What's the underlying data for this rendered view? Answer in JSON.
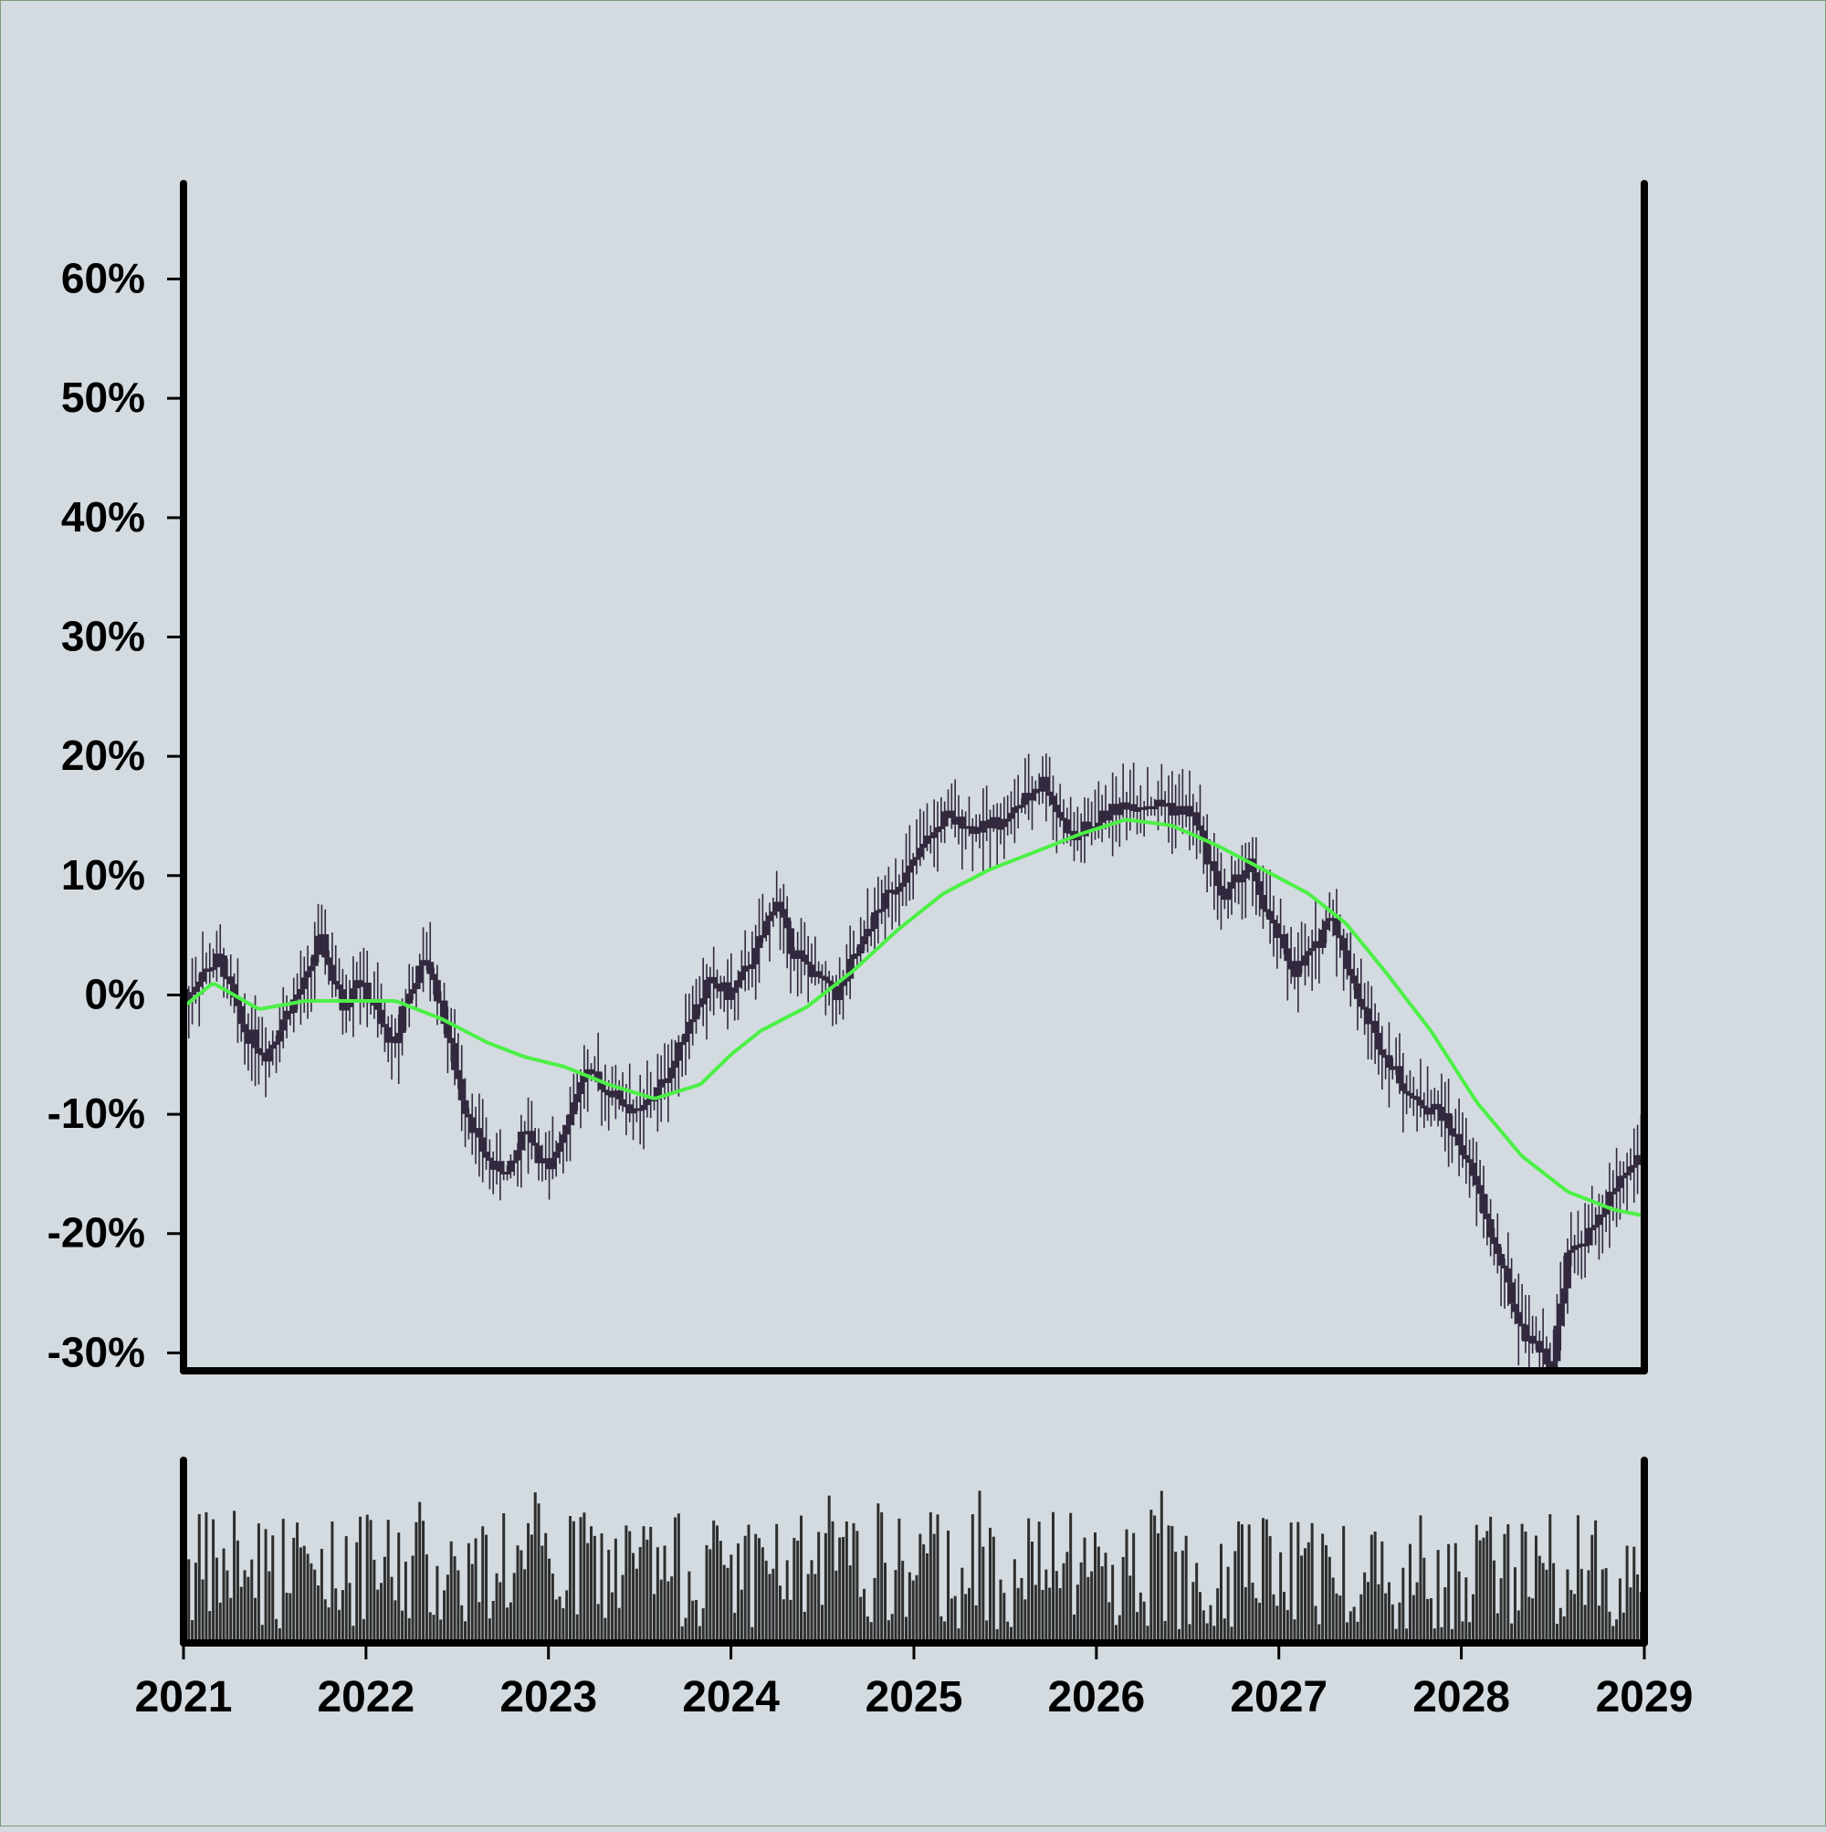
{
  "chart_data": {
    "type": "candlestick",
    "xlim": [
      "2021-01-01",
      "2029-01-01"
    ],
    "x_tick_labels": [
      "2021",
      "2022",
      "2023",
      "2024",
      "2025",
      "2026",
      "2027",
      "2028",
      "2029"
    ],
    "ylim": [
      -31.5,
      68
    ],
    "y_tick_values": [
      60,
      50,
      40,
      30,
      20,
      10,
      0,
      -10,
      -20,
      -30
    ],
    "y_tick_labels": [
      "60%",
      "50%",
      "40%",
      "30%",
      "20%",
      "10%",
      "0%",
      "-10%",
      "-20%",
      "-30%"
    ],
    "grid": false,
    "legend": "none",
    "colors": {
      "background": "#d3dbe0",
      "candle": "#33293f",
      "moving_average": "#4cf046",
      "volume": "#2e2e2e",
      "axis": "#000000"
    },
    "price_path": [
      [
        "2021-01-01",
        -1
      ],
      [
        "2021-02-01",
        1.5
      ],
      [
        "2021-03-15",
        3
      ],
      [
        "2021-05-01",
        -3
      ],
      [
        "2021-06-15",
        -5
      ],
      [
        "2021-08-01",
        -1
      ],
      [
        "2021-09-01",
        1
      ],
      [
        "2021-10-01",
        5
      ],
      [
        "2021-11-15",
        -1
      ],
      [
        "2021-12-15",
        1.5
      ],
      [
        "2022-01-15",
        -1
      ],
      [
        "2022-03-01",
        -4.5
      ],
      [
        "2022-03-15",
        -1
      ],
      [
        "2022-05-01",
        3
      ],
      [
        "2022-06-01",
        -1
      ],
      [
        "2022-07-15",
        -9
      ],
      [
        "2022-09-01",
        -14
      ],
      [
        "2022-10-15",
        -15
      ],
      [
        "2022-11-15",
        -11
      ],
      [
        "2023-01-01",
        -15
      ],
      [
        "2023-02-15",
        -9.5
      ],
      [
        "2023-03-15",
        -6.5
      ],
      [
        "2023-05-01",
        -8
      ],
      [
        "2023-07-01",
        -10
      ],
      [
        "2023-09-01",
        -6.5
      ],
      [
        "2023-10-01",
        -3
      ],
      [
        "2023-11-15",
        1
      ],
      [
        "2024-01-01",
        0
      ],
      [
        "2024-02-15",
        3
      ],
      [
        "2024-04-01",
        8
      ],
      [
        "2024-05-01",
        4
      ],
      [
        "2024-07-01",
        1
      ],
      [
        "2024-08-01",
        0
      ],
      [
        "2024-09-15",
        4
      ],
      [
        "2024-11-01",
        8
      ],
      [
        "2025-01-01",
        11
      ],
      [
        "2025-03-01",
        15
      ],
      [
        "2025-05-01",
        14
      ],
      [
        "2025-07-01",
        14.5
      ],
      [
        "2025-09-15",
        18
      ],
      [
        "2025-11-15",
        13
      ],
      [
        "2026-01-15",
        15
      ],
      [
        "2026-03-01",
        16
      ],
      [
        "2026-05-15",
        16
      ],
      [
        "2026-07-15",
        15
      ],
      [
        "2026-08-15",
        11
      ],
      [
        "2026-09-15",
        8
      ],
      [
        "2026-11-01",
        11
      ],
      [
        "2026-12-15",
        6
      ],
      [
        "2027-02-01",
        2
      ],
      [
        "2027-03-15",
        4
      ],
      [
        "2027-04-15",
        7
      ],
      [
        "2027-06-15",
        -1
      ],
      [
        "2027-08-15",
        -6
      ],
      [
        "2027-10-01",
        -9
      ],
      [
        "2027-11-15",
        -9.5
      ],
      [
        "2028-01-15",
        -14
      ],
      [
        "2028-03-15",
        -22
      ],
      [
        "2028-05-01",
        -28
      ],
      [
        "2028-07-01",
        -31
      ],
      [
        "2028-08-01",
        -22
      ],
      [
        "2028-10-01",
        -19
      ],
      [
        "2028-11-15",
        -15.5
      ],
      [
        "2028-12-31",
        -13
      ]
    ],
    "moving_average": [
      [
        "2021-01-01",
        -1
      ],
      [
        "2021-03-01",
        1
      ],
      [
        "2021-06-01",
        -1.2
      ],
      [
        "2021-09-01",
        -0.5
      ],
      [
        "2021-12-01",
        -0.5
      ],
      [
        "2022-03-01",
        -0.5
      ],
      [
        "2022-06-01",
        -2
      ],
      [
        "2022-09-01",
        -4
      ],
      [
        "2022-11-15",
        -5.2
      ],
      [
        "2023-02-01",
        -6
      ],
      [
        "2023-05-01",
        -7.5
      ],
      [
        "2023-08-01",
        -8.7
      ],
      [
        "2023-11-01",
        -7.5
      ],
      [
        "2024-01-01",
        -5
      ],
      [
        "2024-03-01",
        -3
      ],
      [
        "2024-06-01",
        -1
      ],
      [
        "2024-09-01",
        2
      ],
      [
        "2024-12-01",
        5.5
      ],
      [
        "2025-03-01",
        8.5
      ],
      [
        "2025-06-01",
        10.5
      ],
      [
        "2025-09-01",
        12
      ],
      [
        "2025-12-01",
        13.5
      ],
      [
        "2026-03-01",
        14.7
      ],
      [
        "2026-06-01",
        14.2
      ],
      [
        "2026-09-01",
        12.5
      ],
      [
        "2026-12-01",
        10.5
      ],
      [
        "2027-03-01",
        8.5
      ],
      [
        "2027-05-15",
        6
      ],
      [
        "2027-08-01",
        2
      ],
      [
        "2027-11-01",
        -3
      ],
      [
        "2028-02-01",
        -9
      ],
      [
        "2028-05-01",
        -13.5
      ],
      [
        "2028-08-01",
        -16.5
      ],
      [
        "2028-11-01",
        -18
      ],
      [
        "2028-12-31",
        -18.5
      ]
    ],
    "volume_note": "unscaled volume bars (no volume axis labels)"
  }
}
